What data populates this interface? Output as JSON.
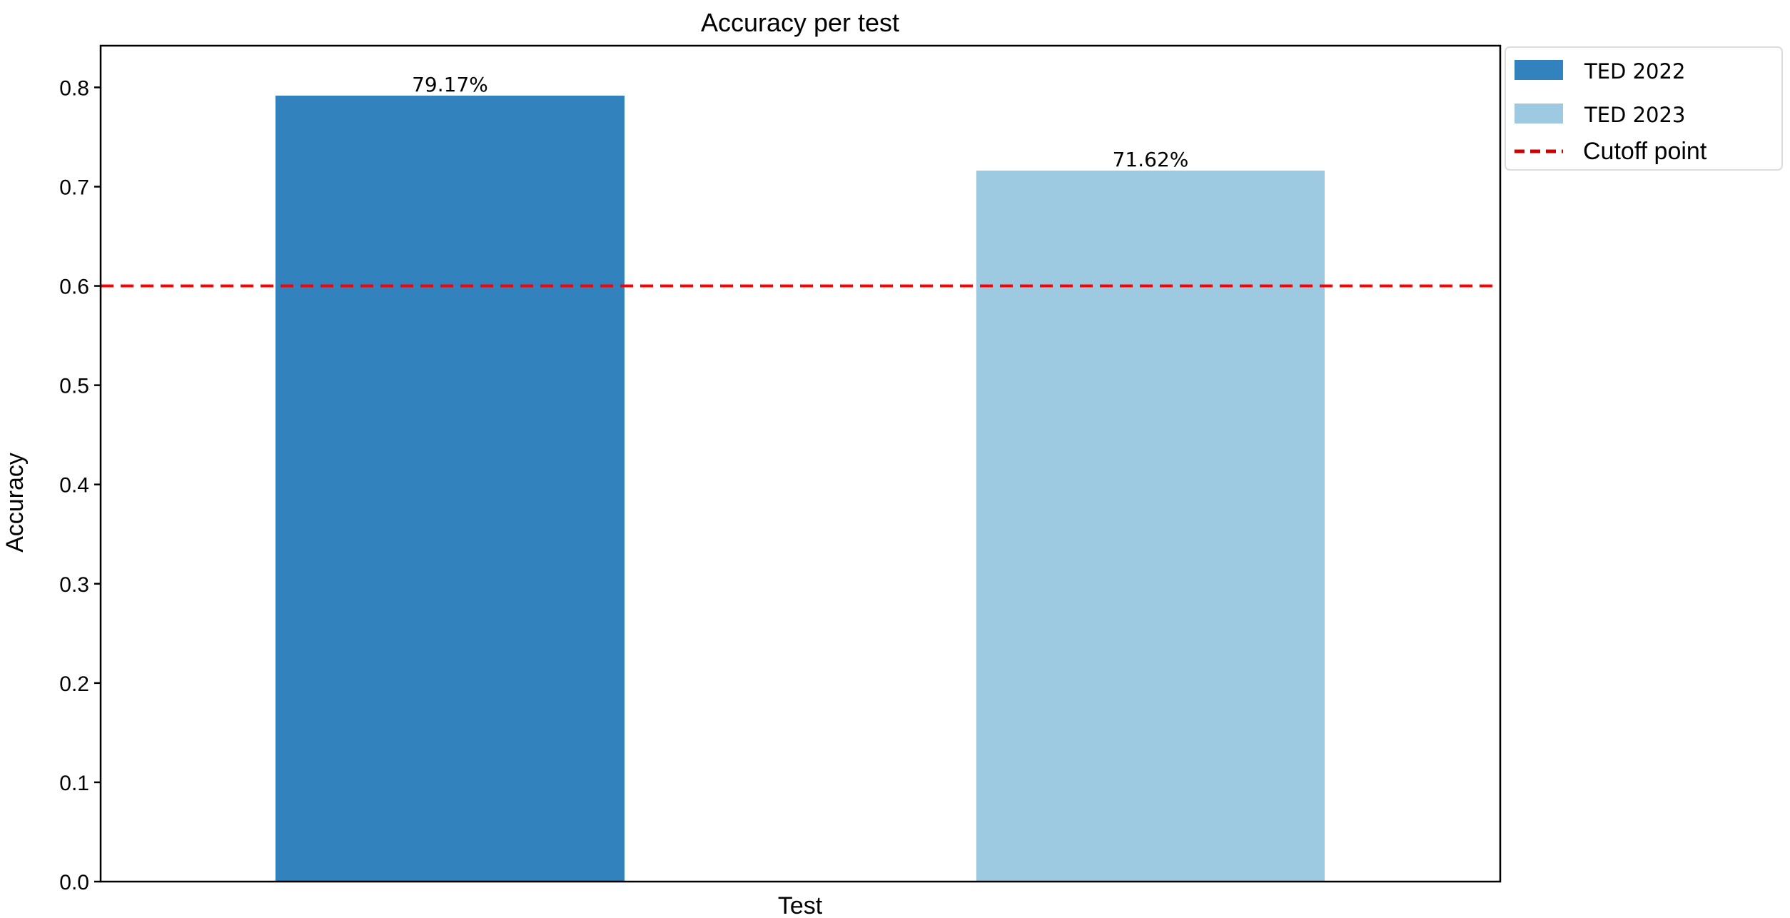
{
  "chart_data": {
    "type": "bar",
    "title": "Accuracy per test",
    "xlabel": "Test",
    "ylabel": "Accuracy",
    "ylim": [
      0,
      0.842
    ],
    "yticks": [
      0.0,
      0.1,
      0.2,
      0.3,
      0.4,
      0.5,
      0.6,
      0.7,
      0.8
    ],
    "ytick_labels": [
      "0.0",
      "0.1",
      "0.2",
      "0.3",
      "0.4",
      "0.5",
      "0.6",
      "0.7",
      "0.8"
    ],
    "grid": false,
    "legend_placement": "outside-top-right",
    "series": [
      {
        "name": "TED 2022",
        "value": 0.7917,
        "label": "79.17%",
        "color": "#3182bd"
      },
      {
        "name": "TED 2023",
        "value": 0.7162,
        "label": "71.62%",
        "color": "#9ecae1"
      }
    ],
    "reference_line": {
      "name": "Cutoff point",
      "value": 0.6,
      "color": "#ff0000",
      "style": "dashed"
    }
  }
}
